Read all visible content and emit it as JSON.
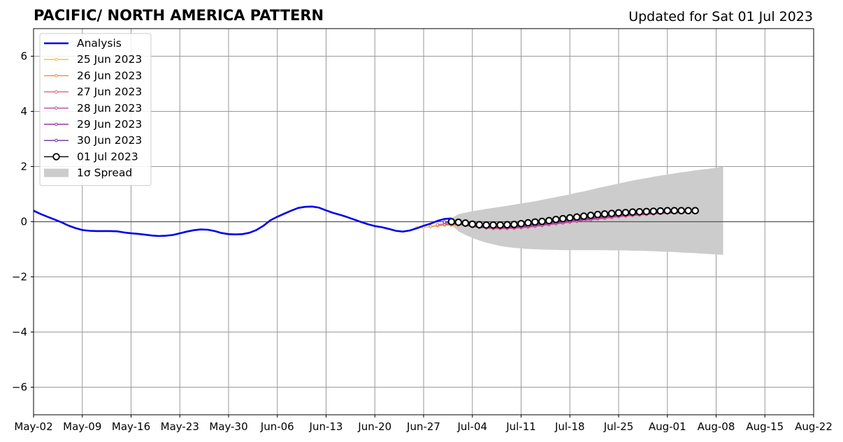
{
  "chart_data": {
    "type": "line",
    "title": "PACIFIC/ NORTH AMERICA PATTERN",
    "subtitle": "Updated for Sat 01 Jul 2023",
    "xlabel": "",
    "ylabel": "",
    "xlim": [
      "2023-05-02",
      "2023-08-22"
    ],
    "ylim": [
      -7,
      7
    ],
    "grid": true,
    "legend_position": "top-left",
    "x_tick_labels": [
      "May-02",
      "May-09",
      "May-16",
      "May-23",
      "May-30",
      "Jun-06",
      "Jun-13",
      "Jun-20",
      "Jun-27",
      "Jul-04",
      "Jul-11",
      "Jul-18",
      "Jul-25",
      "Aug-01",
      "Aug-08",
      "Aug-15",
      "Aug-22"
    ],
    "x_tick_dates": [
      "2023-05-02",
      "2023-05-09",
      "2023-05-16",
      "2023-05-23",
      "2023-05-30",
      "2023-06-06",
      "2023-06-13",
      "2023-06-20",
      "2023-06-27",
      "2023-07-04",
      "2023-07-11",
      "2023-07-18",
      "2023-07-25",
      "2023-08-01",
      "2023-08-08",
      "2023-08-15",
      "2023-08-22"
    ],
    "y_ticks": [
      -6,
      -4,
      -2,
      0,
      2,
      4,
      6
    ],
    "y_tick_labels": [
      "−6",
      "−4",
      "−2",
      "0",
      "2",
      "4",
      "6"
    ],
    "colors": {
      "analysis": "#0000ee",
      "jun25": "#f6b93b",
      "jun26": "#ef8a4a",
      "jun27": "#e0627a",
      "jun28": "#c04a94",
      "jun29": "#9a32a6",
      "jun30": "#6a2ea0",
      "jul01": "#000000",
      "spread": "#cccccc",
      "grid": "#999999"
    },
    "analysis": {
      "name": "Analysis",
      "x": [
        "2023-05-02",
        "2023-05-03",
        "2023-05-04",
        "2023-05-05",
        "2023-05-06",
        "2023-05-07",
        "2023-05-08",
        "2023-05-09",
        "2023-05-10",
        "2023-05-11",
        "2023-05-12",
        "2023-05-13",
        "2023-05-14",
        "2023-05-15",
        "2023-05-16",
        "2023-05-17",
        "2023-05-18",
        "2023-05-19",
        "2023-05-20",
        "2023-05-21",
        "2023-05-22",
        "2023-05-23",
        "2023-05-24",
        "2023-05-25",
        "2023-05-26",
        "2023-05-27",
        "2023-05-28",
        "2023-05-29",
        "2023-05-30",
        "2023-05-31",
        "2023-06-01",
        "2023-06-02",
        "2023-06-03",
        "2023-06-04",
        "2023-06-05",
        "2023-06-06",
        "2023-06-07",
        "2023-06-08",
        "2023-06-09",
        "2023-06-10",
        "2023-06-11",
        "2023-06-12",
        "2023-06-13",
        "2023-06-14",
        "2023-06-15",
        "2023-06-16",
        "2023-06-17",
        "2023-06-18",
        "2023-06-19",
        "2023-06-20",
        "2023-06-21",
        "2023-06-22",
        "2023-06-23",
        "2023-06-24",
        "2023-06-25",
        "2023-06-26",
        "2023-06-27",
        "2023-06-28",
        "2023-06-29",
        "2023-06-30",
        "2023-07-01"
      ],
      "y": [
        0.4,
        0.28,
        0.18,
        0.08,
        -0.02,
        -0.14,
        -0.23,
        -0.3,
        -0.33,
        -0.34,
        -0.34,
        -0.34,
        -0.35,
        -0.39,
        -0.42,
        -0.44,
        -0.47,
        -0.5,
        -0.52,
        -0.51,
        -0.48,
        -0.42,
        -0.36,
        -0.31,
        -0.28,
        -0.29,
        -0.34,
        -0.41,
        -0.45,
        -0.46,
        -0.45,
        -0.4,
        -0.3,
        -0.15,
        0.05,
        0.18,
        0.29,
        0.4,
        0.5,
        0.54,
        0.55,
        0.51,
        0.41,
        0.32,
        0.25,
        0.17,
        0.08,
        -0.01,
        -0.09,
        -0.16,
        -0.2,
        -0.26,
        -0.33,
        -0.36,
        -0.32,
        -0.24,
        -0.15,
        -0.07,
        0.03,
        0.1,
        0.12
      ]
    },
    "series": [
      {
        "name": "25 Jun 2023",
        "color_key": "jun25",
        "x_start": "2023-06-26",
        "y": [
          -0.22,
          -0.2,
          -0.18,
          -0.15,
          -0.13,
          -0.13,
          -0.14
        ]
      },
      {
        "name": "26 Jun 2023",
        "color_key": "jun26",
        "x_start": "2023-06-28",
        "y": [
          -0.17,
          -0.14,
          -0.12,
          -0.11,
          -0.12
        ]
      },
      {
        "name": "27 Jun 2023",
        "color_key": "jun27",
        "x_start": "2023-06-29",
        "y": [
          -0.1,
          -0.08,
          -0.08,
          -0.1,
          -0.14,
          -0.18,
          -0.21,
          -0.23,
          -0.25,
          -0.25,
          -0.25,
          -0.24,
          -0.22,
          -0.2,
          -0.17,
          -0.14,
          -0.11,
          -0.08,
          -0.05,
          -0.02,
          0.01,
          0.04,
          0.07,
          0.1,
          0.12,
          0.15,
          0.18,
          0.2,
          0.22,
          0.24,
          0.26,
          0.28,
          0.3,
          0.31,
          0.32,
          0.33,
          0.34
        ]
      },
      {
        "name": "28 Jun 2023",
        "color_key": "jun28",
        "x_start": "2023-06-30",
        "y": [
          -0.08,
          -0.07,
          -0.09,
          -0.13,
          -0.17,
          -0.2,
          -0.22,
          -0.23,
          -0.23,
          -0.23,
          -0.22,
          -0.2,
          -0.18,
          -0.16,
          -0.13,
          -0.1,
          -0.07,
          -0.04,
          -0.01,
          0.02,
          0.05,
          0.08,
          0.11,
          0.14,
          0.17,
          0.19,
          0.21,
          0.23,
          0.25,
          0.27,
          0.29,
          0.3,
          0.31,
          0.32,
          0.33,
          0.34
        ]
      },
      {
        "name": "29 Jun 2023",
        "color_key": "jun29",
        "x_start": "2023-06-30",
        "y": [
          -0.02,
          -0.04,
          -0.07,
          -0.11,
          -0.15,
          -0.18,
          -0.2,
          -0.21,
          -0.21,
          -0.21,
          -0.2,
          -0.18,
          -0.16,
          -0.13,
          -0.1,
          -0.07,
          -0.04,
          -0.01,
          0.02,
          0.05,
          0.08,
          0.11,
          0.14,
          0.17,
          0.2,
          0.22,
          0.24,
          0.26,
          0.28,
          0.3,
          0.31,
          0.32,
          0.33,
          0.34,
          0.35,
          0.35
        ]
      },
      {
        "name": "30 Jun 2023",
        "color_key": "jun30",
        "x_start": "2023-06-30",
        "y": [
          -0.01,
          -0.03,
          -0.06,
          -0.1,
          -0.14,
          -0.17,
          -0.19,
          -0.2,
          -0.2,
          -0.19,
          -0.17,
          -0.15,
          -0.12,
          -0.09,
          -0.06,
          -0.03,
          0.0,
          0.03,
          0.06,
          0.09,
          0.12,
          0.15,
          0.18,
          0.21,
          0.23,
          0.25,
          0.27,
          0.29,
          0.31,
          0.32,
          0.33,
          0.34,
          0.35,
          0.36,
          0.37,
          0.37
        ]
      },
      {
        "name": "01 Jul 2023",
        "color_key": "jul01",
        "x_start": "2023-07-01",
        "y": [
          0.0,
          -0.02,
          -0.05,
          -0.09,
          -0.11,
          -0.12,
          -0.12,
          -0.12,
          -0.11,
          -0.1,
          -0.07,
          -0.04,
          -0.01,
          0.01,
          0.04,
          0.08,
          0.11,
          0.14,
          0.17,
          0.2,
          0.23,
          0.26,
          0.28,
          0.3,
          0.32,
          0.33,
          0.35,
          0.36,
          0.37,
          0.38,
          0.39,
          0.4,
          0.4,
          0.4,
          0.4,
          0.4
        ]
      }
    ],
    "spread": {
      "name": "1σ Spread",
      "x_start": "2023-07-01",
      "upper": [
        0.12,
        0.27,
        0.33,
        0.38,
        0.42,
        0.46,
        0.5,
        0.54,
        0.58,
        0.62,
        0.66,
        0.7,
        0.74,
        0.79,
        0.84,
        0.89,
        0.94,
        0.99,
        1.05,
        1.1,
        1.16,
        1.22,
        1.27,
        1.33,
        1.38,
        1.44,
        1.49,
        1.54,
        1.58,
        1.63,
        1.67,
        1.71,
        1.75,
        1.79,
        1.82,
        1.86,
        1.89,
        1.92,
        1.96,
        2.0
      ],
      "lower": [
        -0.12,
        -0.35,
        -0.48,
        -0.59,
        -0.68,
        -0.76,
        -0.82,
        -0.88,
        -0.92,
        -0.95,
        -0.97,
        -0.99,
        -1.0,
        -1.01,
        -1.02,
        -1.02,
        -1.03,
        -1.03,
        -1.03,
        -1.03,
        -1.03,
        -1.03,
        -1.03,
        -1.04,
        -1.04,
        -1.04,
        -1.05,
        -1.05,
        -1.06,
        -1.07,
        -1.08,
        -1.09,
        -1.1,
        -1.12,
        -1.13,
        -1.14,
        -1.16,
        -1.17,
        -1.19,
        -1.2
      ]
    },
    "legend": [
      {
        "label": "Analysis",
        "color_key": "analysis",
        "kind": "thick-line"
      },
      {
        "label": "25 Jun 2023",
        "color_key": "jun25",
        "kind": "line-dot"
      },
      {
        "label": "26 Jun 2023",
        "color_key": "jun26",
        "kind": "line-dot"
      },
      {
        "label": "27 Jun 2023",
        "color_key": "jun27",
        "kind": "line-dot"
      },
      {
        "label": "28 Jun 2023",
        "color_key": "jun28",
        "kind": "line-dot"
      },
      {
        "label": "29 Jun 2023",
        "color_key": "jun29",
        "kind": "line-dot"
      },
      {
        "label": "30 Jun 2023",
        "color_key": "jun30",
        "kind": "line-dot"
      },
      {
        "label": "01 Jul 2023",
        "color_key": "jul01",
        "kind": "line-circle"
      },
      {
        "label": "1σ Spread",
        "color_key": "spread",
        "kind": "patch"
      }
    ]
  }
}
